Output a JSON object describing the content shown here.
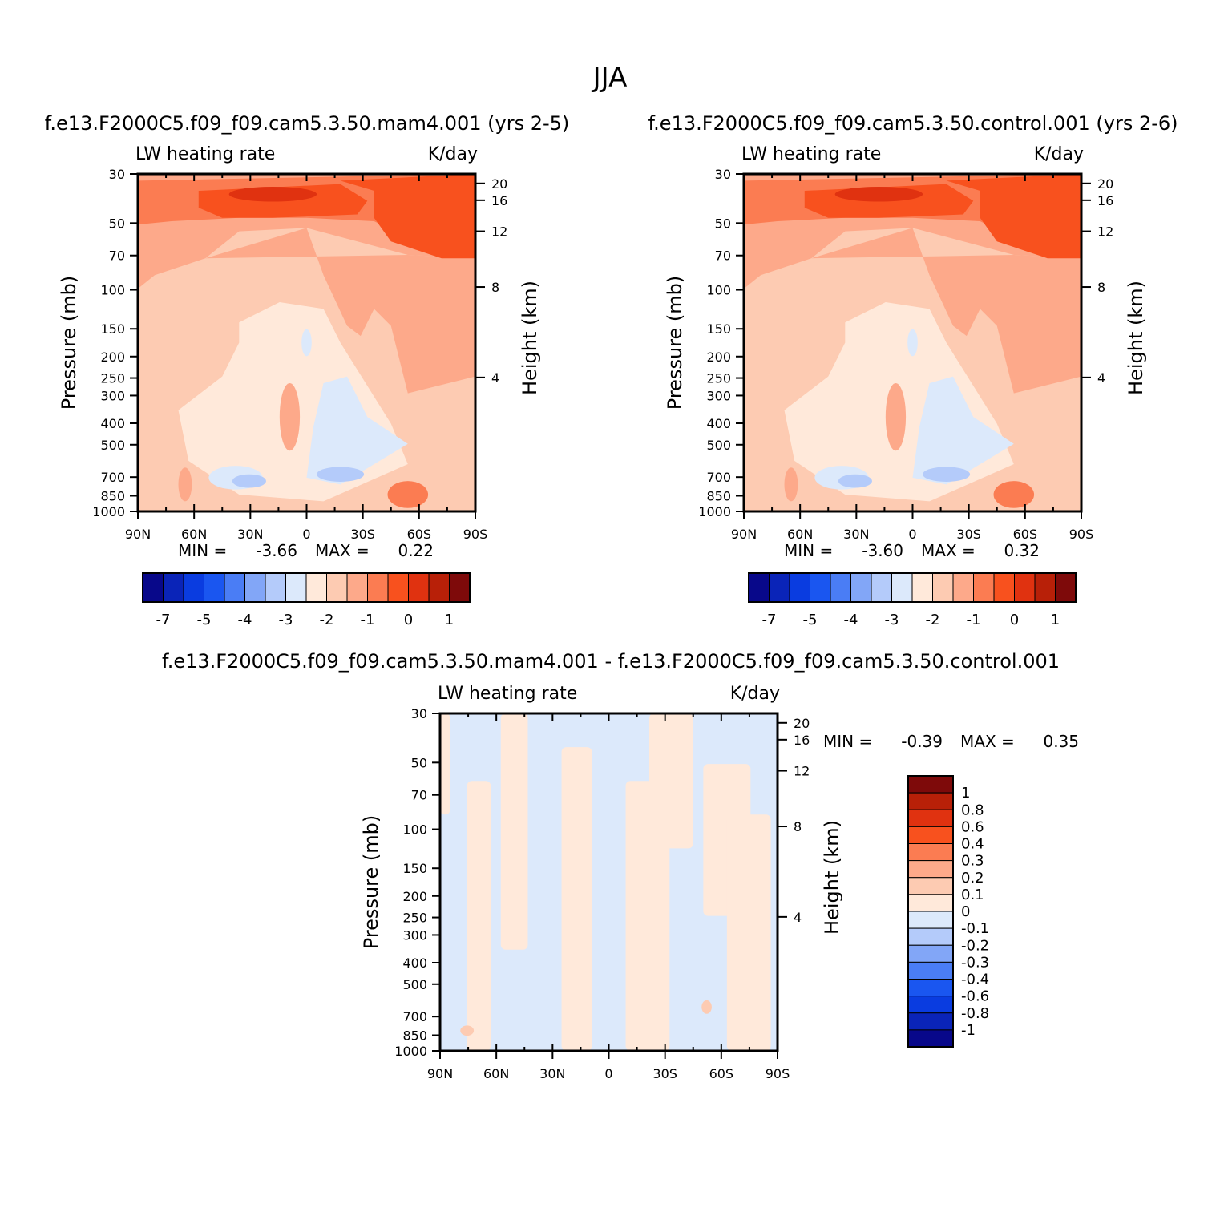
{
  "figure": {
    "title": "JJA"
  },
  "colors": {
    "palette": [
      "#08088a",
      "#0a24b8",
      "#0a3ce0",
      "#1a56f0",
      "#4a7df5",
      "#82a6f7",
      "#b4cbfa",
      "#dce9fb",
      "#ffe9da",
      "#fdcbb2",
      "#fda98a",
      "#fb7c52",
      "#f8511e",
      "#e03210",
      "#b82008",
      "#7e0a0a"
    ]
  },
  "common": {
    "var_label": "LW heating rate",
    "units": "K/day",
    "ylabel": "Pressure (mb)",
    "ylabel_right": "Height (km)",
    "pressure_ticks": [
      "30",
      "50",
      "70",
      "100",
      "150",
      "200",
      "250",
      "300",
      "400",
      "500",
      "700",
      "850",
      "1000"
    ],
    "height_ticks": [
      "20",
      "16",
      "12",
      "8",
      "4"
    ],
    "lat_ticks": [
      "90N",
      "60N",
      "30N",
      "0",
      "30S",
      "60S",
      "90S"
    ],
    "min_label": "MIN =",
    "max_label": "MAX ="
  },
  "chart_data": [
    {
      "type": "heatmap",
      "title": "f.e13.F2000C5.f09_f09.cam5.3.50.mam4.001 (yrs 2-5)",
      "xlabel": "",
      "ylabel": "Pressure (mb)",
      "x_range": [
        "90N",
        "90S"
      ],
      "y_range_mb": [
        1000,
        30
      ],
      "min": "-3.66",
      "max": "0.22",
      "colorbar_levels": [
        "-7",
        "-5",
        "-4",
        "-3",
        "-2",
        "-1",
        "0",
        "1"
      ]
    },
    {
      "type": "heatmap",
      "title": "f.e13.F2000C5.f09_f09.cam5.3.50.control.001 (yrs 2-6)",
      "xlabel": "",
      "ylabel": "Pressure (mb)",
      "x_range": [
        "90N",
        "90S"
      ],
      "y_range_mb": [
        1000,
        30
      ],
      "min": "-3.60",
      "max": "0.32",
      "colorbar_levels": [
        "-7",
        "-5",
        "-4",
        "-3",
        "-2",
        "-1",
        "0",
        "1"
      ]
    },
    {
      "type": "heatmap",
      "title": "f.e13.F2000C5.f09_f09.cam5.3.50.mam4.001 - f.e13.F2000C5.f09_f09.cam5.3.50.control.001",
      "xlabel": "",
      "ylabel": "Pressure (mb)",
      "x_range": [
        "90N",
        "90S"
      ],
      "y_range_mb": [
        1000,
        30
      ],
      "min": "-0.39",
      "max": "0.35",
      "colorbar_levels": [
        "1",
        "0.8",
        "0.6",
        "0.4",
        "0.3",
        "0.2",
        "0.1",
        "0",
        "-0.1",
        "-0.2",
        "-0.3",
        "-0.4",
        "-0.6",
        "-0.8",
        "-1"
      ]
    }
  ]
}
